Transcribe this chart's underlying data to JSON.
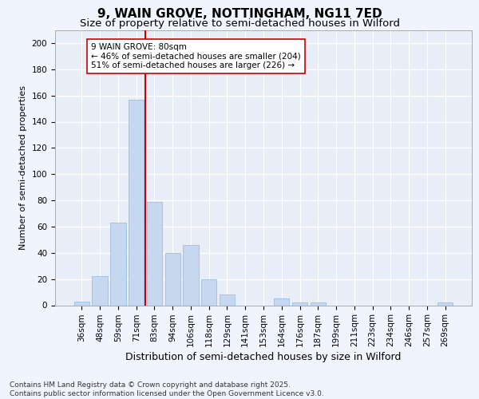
{
  "title": "9, WAIN GROVE, NOTTINGHAM, NG11 7ED",
  "subtitle": "Size of property relative to semi-detached houses in Wilford",
  "xlabel": "Distribution of semi-detached houses by size in Wilford",
  "ylabel": "Number of semi-detached properties",
  "categories": [
    "36sqm",
    "48sqm",
    "59sqm",
    "71sqm",
    "83sqm",
    "94sqm",
    "106sqm",
    "118sqm",
    "129sqm",
    "141sqm",
    "153sqm",
    "164sqm",
    "176sqm",
    "187sqm",
    "199sqm",
    "211sqm",
    "223sqm",
    "234sqm",
    "246sqm",
    "257sqm",
    "269sqm"
  ],
  "values": [
    3,
    22,
    63,
    157,
    79,
    40,
    46,
    20,
    8,
    0,
    0,
    5,
    2,
    2,
    0,
    0,
    0,
    0,
    0,
    0,
    2
  ],
  "bar_color": "#c5d8f0",
  "bar_edge_color": "#9bbfe0",
  "vline_color": "#cc0000",
  "vline_index": 4,
  "annotation_text": "9 WAIN GROVE: 80sqm\n← 46% of semi-detached houses are smaller (204)\n51% of semi-detached houses are larger (226) →",
  "annotation_box_facecolor": "#ffffff",
  "annotation_box_edgecolor": "#cc0000",
  "footer_text": "Contains HM Land Registry data © Crown copyright and database right 2025.\nContains public sector information licensed under the Open Government Licence v3.0.",
  "fig_facecolor": "#f0f4fc",
  "ax_facecolor": "#e8eef8",
  "ylim": [
    0,
    210
  ],
  "yticks": [
    0,
    20,
    40,
    60,
    80,
    100,
    120,
    140,
    160,
    180,
    200
  ],
  "title_fontsize": 11,
  "subtitle_fontsize": 9.5,
  "xlabel_fontsize": 9,
  "ylabel_fontsize": 8,
  "tick_fontsize": 7.5,
  "annotation_fontsize": 7.5,
  "footer_fontsize": 6.5
}
